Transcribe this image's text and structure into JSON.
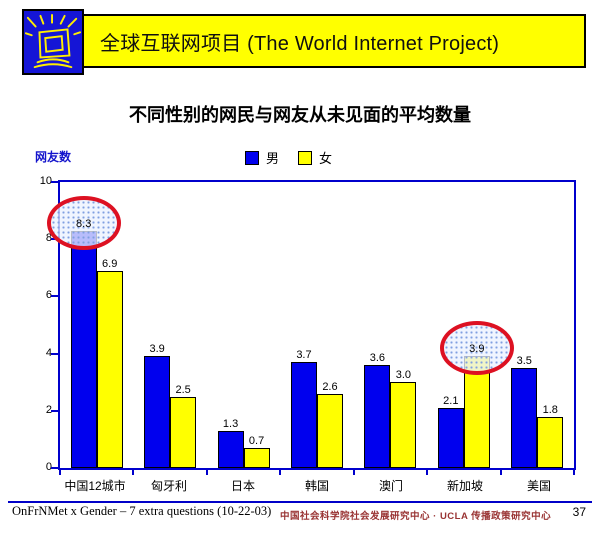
{
  "header": {
    "title": "全球互联网项目 (The World Internet Project)",
    "banner_color": "#FFFF00",
    "logo_color": "#1515D6"
  },
  "slide_title": "不同性别的网民与网友从未见面的平均数量",
  "chart": {
    "axis_title": "网友数",
    "axis_title_color": "#1414CC",
    "frame_color": "#0000CC"
  },
  "chart_data": {
    "type": "bar",
    "title": "不同性别的网民与网友从未见面的平均数量",
    "categories": [
      "中国12城市",
      "匈牙利",
      "日本",
      "韩国",
      "澳门",
      "新加坡",
      "美国"
    ],
    "series": [
      {
        "name": "男",
        "color": "#0000ee",
        "values": [
          8.3,
          3.9,
          1.3,
          3.7,
          3.6,
          2.1,
          3.5
        ]
      },
      {
        "name": "女",
        "color": "#ffff00",
        "values": [
          6.9,
          2.5,
          0.7,
          2.6,
          3.0,
          3.9,
          1.8
        ]
      }
    ],
    "ylabel": "网友数",
    "xlabel": "",
    "ylim": [
      0,
      10
    ],
    "yticks": [
      0,
      2,
      4,
      6,
      8,
      10
    ],
    "grid": false,
    "legend_position": "top-center",
    "annotations": [
      {
        "type": "ellipse",
        "series": "男",
        "category": "中国12城市",
        "value": 8.3,
        "color": "#dd1122"
      },
      {
        "type": "ellipse",
        "series": "女",
        "category": "新加坡",
        "value": 3.9,
        "color": "#dd1122"
      }
    ]
  },
  "footer": {
    "left": "OnFrNMet x Gender – 7 extra questions (10-22-03)",
    "center": "中国社会科学院社会发展研究中心 · UCLA 传播政策研究中心",
    "page": "37"
  }
}
